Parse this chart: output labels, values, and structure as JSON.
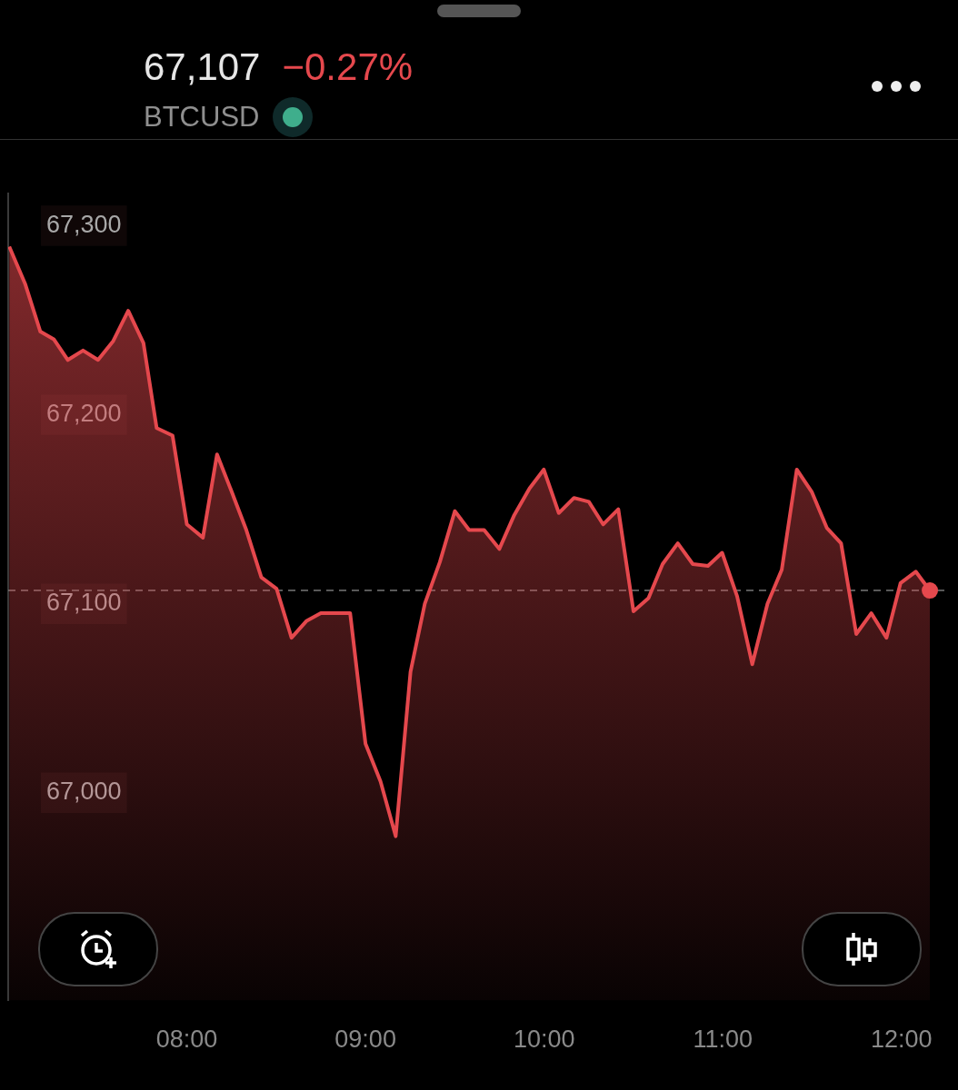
{
  "chart_data": {
    "type": "area",
    "title": "67,107",
    "subtitle": "BTCUSD",
    "annotations": [
      "−0.27%"
    ],
    "x": [
      7.006,
      7.096,
      7.18,
      7.255,
      7.334,
      7.419,
      7.503,
      7.588,
      7.672,
      7.757,
      7.831,
      7.92,
      8.0,
      8.09,
      8.169,
      8.248,
      8.333,
      8.417,
      8.502,
      8.586,
      8.671,
      8.75,
      8.914,
      9.0,
      9.084,
      9.169,
      9.252,
      9.332,
      9.416,
      9.5,
      9.58,
      9.664,
      9.749,
      9.833,
      9.918,
      9.998,
      10.082,
      10.167,
      10.25,
      10.33,
      10.415,
      10.5,
      10.584,
      10.663,
      10.748,
      10.832,
      10.917,
      10.996,
      11.08,
      11.165,
      11.25,
      11.33,
      11.414,
      11.499,
      11.583,
      11.662,
      11.747,
      11.831,
      11.916,
      11.995,
      12.08,
      12.159
    ],
    "series": [
      {
        "color": "#e5484d",
        "values": [
          67289,
          67269,
          67244,
          67240,
          67229,
          67234,
          67229,
          67239,
          67255,
          67238,
          67193,
          67189,
          67142,
          67135,
          67179,
          67160,
          67139,
          67114,
          67108,
          67082,
          67091,
          67095,
          67095,
          67026,
          67006,
          66977,
          67064,
          67100,
          67122,
          67149,
          67139,
          67139,
          67129,
          67147,
          67161,
          67171,
          67148,
          67156,
          67154,
          67142,
          67150,
          67096,
          67103,
          67121,
          67132,
          67121,
          67120,
          67127,
          67104,
          67068,
          67100,
          67118,
          67171,
          67159,
          67140,
          67132,
          67084,
          67095,
          67082,
          67111,
          67117,
          67107
        ]
      }
    ],
    "xlim": [
      7.0,
      12.24
    ],
    "ylim": [
      66890,
      67317
    ],
    "xticks": [
      {
        "value": 8,
        "label": "08:00"
      },
      {
        "value": 9,
        "label": "09:00"
      },
      {
        "value": 10,
        "label": "10:00"
      },
      {
        "value": 11,
        "label": "11:00"
      },
      {
        "value": 12,
        "label": "12:00"
      }
    ],
    "yticks": [
      {
        "value": 67000,
        "label": "67,000"
      },
      {
        "value": 67100,
        "label": "67,100"
      },
      {
        "value": 67200,
        "label": "67,200"
      },
      {
        "value": 67300,
        "label": "67,300"
      }
    ],
    "ref_lines": [
      {
        "axis": "y",
        "value": 67107,
        "color": "#777777",
        "line_style": "dashed"
      }
    ],
    "grid": false,
    "legend": false
  }
}
